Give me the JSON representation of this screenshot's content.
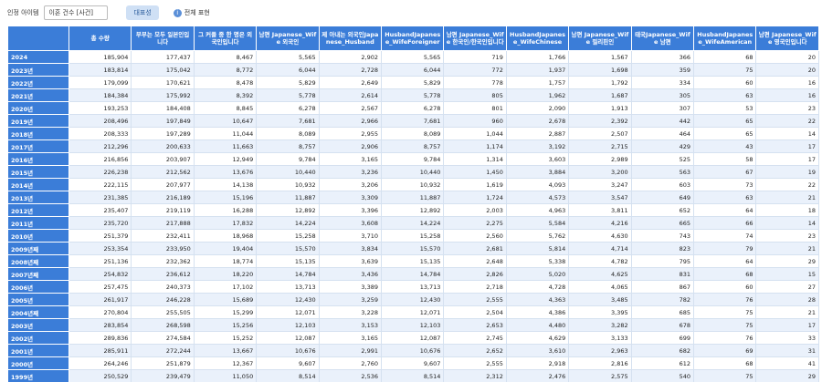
{
  "toolbar": {
    "label": "인정 아이템",
    "select": "이혼 건수 [사건]",
    "button": "대표성",
    "info": "전체 표현"
  },
  "table": {
    "headers": [
      "총 수량",
      "부부는 모두 일본인입니다",
      "그 커플 중 한 명은 외국인입니다",
      "남편 Japanese_Wife 외국인",
      "제 아내는 외국인Japanese_Husband",
      "HusbandJapanese_WifeForeigner",
      "남편 Japanese_Wife 한국인/한국인입니다",
      "HusbandJapanese_WifeChinese",
      "남편 Japanese_Wife 필리핀인",
      "태국Japanese_Wife 남편",
      "HusbandJapanese_WifeAmerican",
      "남편 Japanese_Wife 영국인입니다"
    ],
    "rows": [
      [
        "2024",
        "185,904",
        "177,437",
        "8,467",
        "5,565",
        "2,902",
        "5,565",
        "719",
        "1,766",
        "1,567",
        "366",
        "68",
        "20"
      ],
      [
        "2023년",
        "183,814",
        "175,042",
        "8,772",
        "6,044",
        "2,728",
        "6,044",
        "772",
        "1,937",
        "1,698",
        "359",
        "75",
        "20"
      ],
      [
        "2022년",
        "179,099",
        "170,621",
        "8,478",
        "5,829",
        "2,649",
        "5,829",
        "778",
        "1,757",
        "1,792",
        "334",
        "60",
        "16"
      ],
      [
        "2021년",
        "184,384",
        "175,992",
        "8,392",
        "5,778",
        "2,614",
        "5,778",
        "805",
        "1,962",
        "1,687",
        "305",
        "63",
        "16"
      ],
      [
        "2020년",
        "193,253",
        "184,408",
        "8,845",
        "6,278",
        "2,567",
        "6,278",
        "801",
        "2,090",
        "1,913",
        "307",
        "53",
        "23"
      ],
      [
        "2019년",
        "208,496",
        "197,849",
        "10,647",
        "7,681",
        "2,966",
        "7,681",
        "960",
        "2,678",
        "2,392",
        "442",
        "65",
        "22"
      ],
      [
        "2018년",
        "208,333",
        "197,289",
        "11,044",
        "8,089",
        "2,955",
        "8,089",
        "1,044",
        "2,887",
        "2,507",
        "464",
        "65",
        "14"
      ],
      [
        "2017년",
        "212,296",
        "200,633",
        "11,663",
        "8,757",
        "2,906",
        "8,757",
        "1,174",
        "3,192",
        "2,715",
        "429",
        "43",
        "17"
      ],
      [
        "2016년",
        "216,856",
        "203,907",
        "12,949",
        "9,784",
        "3,165",
        "9,784",
        "1,314",
        "3,603",
        "2,989",
        "525",
        "58",
        "17"
      ],
      [
        "2015년",
        "226,238",
        "212,562",
        "13,676",
        "10,440",
        "3,236",
        "10,440",
        "1,450",
        "3,884",
        "3,200",
        "563",
        "67",
        "19"
      ],
      [
        "2014년",
        "222,115",
        "207,977",
        "14,138",
        "10,932",
        "3,206",
        "10,932",
        "1,619",
        "4,093",
        "3,247",
        "603",
        "73",
        "22"
      ],
      [
        "2013년",
        "231,385",
        "216,189",
        "15,196",
        "11,887",
        "3,309",
        "11,887",
        "1,724",
        "4,573",
        "3,547",
        "649",
        "63",
        "21"
      ],
      [
        "2012년",
        "235,407",
        "219,119",
        "16,288",
        "12,892",
        "3,396",
        "12,892",
        "2,003",
        "4,963",
        "3,811",
        "652",
        "64",
        "18"
      ],
      [
        "2011년",
        "235,720",
        "217,888",
        "17,832",
        "14,224",
        "3,608",
        "14,224",
        "2,275",
        "5,584",
        "4,216",
        "665",
        "66",
        "14"
      ],
      [
        "2010년",
        "251,379",
        "232,411",
        "18,968",
        "15,258",
        "3,710",
        "15,258",
        "2,560",
        "5,762",
        "4,630",
        "743",
        "74",
        "23"
      ],
      [
        "2009년째",
        "253,354",
        "233,950",
        "19,404",
        "15,570",
        "3,834",
        "15,570",
        "2,681",
        "5,814",
        "4,714",
        "823",
        "79",
        "21"
      ],
      [
        "2008년째",
        "251,136",
        "232,362",
        "18,774",
        "15,135",
        "3,639",
        "15,135",
        "2,648",
        "5,338",
        "4,782",
        "795",
        "64",
        "29"
      ],
      [
        "2007년째",
        "254,832",
        "236,612",
        "18,220",
        "14,784",
        "3,436",
        "14,784",
        "2,826",
        "5,020",
        "4,625",
        "831",
        "68",
        "15"
      ],
      [
        "2006년",
        "257,475",
        "240,373",
        "17,102",
        "13,713",
        "3,389",
        "13,713",
        "2,718",
        "4,728",
        "4,065",
        "867",
        "60",
        "27"
      ],
      [
        "2005년",
        "261,917",
        "246,228",
        "15,689",
        "12,430",
        "3,259",
        "12,430",
        "2,555",
        "4,363",
        "3,485",
        "782",
        "76",
        "28"
      ],
      [
        "2004년째",
        "270,804",
        "255,505",
        "15,299",
        "12,071",
        "3,228",
        "12,071",
        "2,504",
        "4,386",
        "3,395",
        "685",
        "75",
        "21"
      ],
      [
        "2003년",
        "283,854",
        "268,598",
        "15,256",
        "12,103",
        "3,153",
        "12,103",
        "2,653",
        "4,480",
        "3,282",
        "678",
        "75",
        "17"
      ],
      [
        "2002년",
        "289,836",
        "274,584",
        "15,252",
        "12,087",
        "3,165",
        "12,087",
        "2,745",
        "4,629",
        "3,133",
        "699",
        "76",
        "33"
      ],
      [
        "2001년",
        "285,911",
        "272,244",
        "13,667",
        "10,676",
        "2,991",
        "10,676",
        "2,652",
        "3,610",
        "2,963",
        "682",
        "69",
        "31"
      ],
      [
        "2000년",
        "264,246",
        "251,879",
        "12,367",
        "9,607",
        "2,760",
        "9,607",
        "2,555",
        "2,918",
        "2,816",
        "612",
        "68",
        "41"
      ],
      [
        "1999년",
        "250,529",
        "239,479",
        "11,050",
        "8,514",
        "2,536",
        "8,514",
        "2,312",
        "2,476",
        "2,575",
        "540",
        "75",
        "29"
      ]
    ]
  }
}
